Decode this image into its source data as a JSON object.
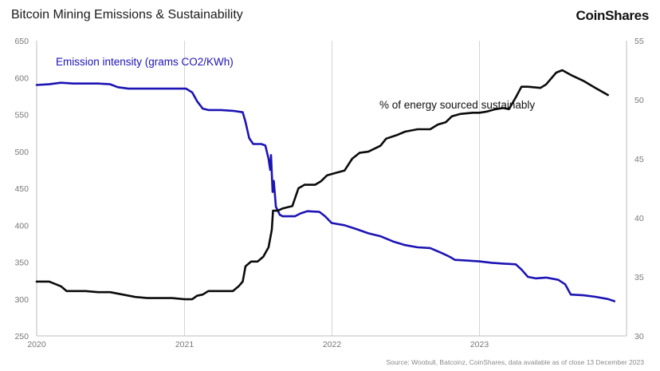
{
  "header": {
    "title": "Bitcoin Mining Emissions & Sustainability",
    "brand": "CoinShares"
  },
  "footer": {
    "source": "Source: Woobull, Batcoinz, CoinShares, data available as of close 13 December 2023"
  },
  "chart_data": {
    "type": "line",
    "x_type": "date",
    "xlim": [
      "2020-01-01",
      "2023-12-31"
    ],
    "x_ticks": [
      "2020",
      "2021",
      "2022",
      "2023"
    ],
    "y_left": {
      "lim": [
        250,
        650
      ],
      "ticks": [
        "250",
        "300",
        "350",
        "400",
        "450",
        "500",
        "550",
        "600",
        "650"
      ]
    },
    "y_right": {
      "lim": [
        30,
        55
      ],
      "ticks": [
        "30",
        "35",
        "40",
        "45",
        "50",
        "55"
      ]
    },
    "grid": {
      "vertical": true,
      "horizontal": false
    },
    "annotations": {
      "emission": "Emission intensity (grams CO2/KWh)",
      "sustainable": "% of energy sourced sustainably"
    },
    "series": [
      {
        "axis": "left",
        "color": "#1c14b4",
        "points": [
          [
            "2020-01-01",
            590
          ],
          [
            "2020-02-01",
            591
          ],
          [
            "2020-03-01",
            593
          ],
          [
            "2020-04-01",
            592
          ],
          [
            "2020-06-01",
            592
          ],
          [
            "2020-07-01",
            591
          ],
          [
            "2020-07-20",
            587
          ],
          [
            "2020-08-15",
            585
          ],
          [
            "2020-10-01",
            585
          ],
          [
            "2020-12-31",
            585
          ],
          [
            "2021-01-05",
            585
          ],
          [
            "2021-01-20",
            580
          ],
          [
            "2021-02-01",
            568
          ],
          [
            "2021-02-15",
            558
          ],
          [
            "2021-03-01",
            556
          ],
          [
            "2021-04-01",
            556
          ],
          [
            "2021-05-01",
            555
          ],
          [
            "2021-05-25",
            553
          ],
          [
            "2021-06-01",
            540
          ],
          [
            "2021-06-10",
            518
          ],
          [
            "2021-06-20",
            510
          ],
          [
            "2021-07-10",
            510
          ],
          [
            "2021-07-20",
            508
          ],
          [
            "2021-07-28",
            490
          ],
          [
            "2021-08-01",
            475
          ],
          [
            "2021-08-03",
            495
          ],
          [
            "2021-08-07",
            445
          ],
          [
            "2021-08-10",
            460
          ],
          [
            "2021-08-15",
            425
          ],
          [
            "2021-08-25",
            414
          ],
          [
            "2021-09-01",
            412
          ],
          [
            "2021-10-01",
            412
          ],
          [
            "2021-10-15",
            416
          ],
          [
            "2021-11-01",
            419
          ],
          [
            "2021-12-01",
            418
          ],
          [
            "2021-12-15",
            412
          ],
          [
            "2021-12-31",
            403
          ],
          [
            "2022-02-01",
            400
          ],
          [
            "2022-03-01",
            395
          ],
          [
            "2022-04-01",
            389
          ],
          [
            "2022-05-01",
            385
          ],
          [
            "2022-06-01",
            378
          ],
          [
            "2022-07-01",
            373
          ],
          [
            "2022-08-01",
            370
          ],
          [
            "2022-09-01",
            369
          ],
          [
            "2022-10-01",
            362
          ],
          [
            "2022-10-20",
            357
          ],
          [
            "2022-11-01",
            353
          ],
          [
            "2022-12-01",
            352
          ],
          [
            "2022-12-31",
            351
          ],
          [
            "2023-02-01",
            349
          ],
          [
            "2023-03-01",
            348
          ],
          [
            "2023-04-01",
            347
          ],
          [
            "2023-04-15",
            340
          ],
          [
            "2023-05-01",
            330
          ],
          [
            "2023-05-20",
            328
          ],
          [
            "2023-06-15",
            329
          ],
          [
            "2023-07-15",
            326
          ],
          [
            "2023-08-01",
            320
          ],
          [
            "2023-08-15",
            306
          ],
          [
            "2023-09-15",
            305
          ],
          [
            "2023-10-15",
            303
          ],
          [
            "2023-11-15",
            300
          ],
          [
            "2023-12-01",
            297
          ]
        ]
      },
      {
        "axis": "right",
        "color": "#0b0b0b",
        "points": [
          [
            "2020-01-01",
            34.6
          ],
          [
            "2020-02-01",
            34.6
          ],
          [
            "2020-03-01",
            34.2
          ],
          [
            "2020-03-15",
            33.8
          ],
          [
            "2020-05-01",
            33.8
          ],
          [
            "2020-06-01",
            33.7
          ],
          [
            "2020-07-01",
            33.7
          ],
          [
            "2020-08-01",
            33.5
          ],
          [
            "2020-09-01",
            33.3
          ],
          [
            "2020-10-01",
            33.2
          ],
          [
            "2020-12-01",
            33.2
          ],
          [
            "2021-01-01",
            33.1
          ],
          [
            "2021-01-20",
            33.1
          ],
          [
            "2021-02-01",
            33.4
          ],
          [
            "2021-02-15",
            33.5
          ],
          [
            "2021-03-01",
            33.8
          ],
          [
            "2021-05-01",
            33.8
          ],
          [
            "2021-05-15",
            34.2
          ],
          [
            "2021-05-25",
            34.6
          ],
          [
            "2021-06-01",
            35.9
          ],
          [
            "2021-06-15",
            36.3
          ],
          [
            "2021-07-01",
            36.3
          ],
          [
            "2021-07-15",
            36.7
          ],
          [
            "2021-07-28",
            37.5
          ],
          [
            "2021-08-05",
            39.0
          ],
          [
            "2021-08-08",
            40.6
          ],
          [
            "2021-08-20",
            40.6
          ],
          [
            "2021-09-01",
            40.8
          ],
          [
            "2021-09-25",
            41.0
          ],
          [
            "2021-10-10",
            42.5
          ],
          [
            "2021-10-25",
            42.8
          ],
          [
            "2021-11-20",
            42.8
          ],
          [
            "2021-12-05",
            43.1
          ],
          [
            "2021-12-20",
            43.6
          ],
          [
            "2022-01-10",
            43.8
          ],
          [
            "2022-02-01",
            44.0
          ],
          [
            "2022-02-20",
            45.0
          ],
          [
            "2022-03-10",
            45.5
          ],
          [
            "2022-04-01",
            45.6
          ],
          [
            "2022-05-01",
            46.1
          ],
          [
            "2022-05-15",
            46.7
          ],
          [
            "2022-06-10",
            47.0
          ],
          [
            "2022-07-01",
            47.3
          ],
          [
            "2022-08-01",
            47.5
          ],
          [
            "2022-09-01",
            47.5
          ],
          [
            "2022-09-20",
            47.9
          ],
          [
            "2022-10-10",
            48.1
          ],
          [
            "2022-10-25",
            48.6
          ],
          [
            "2022-11-15",
            48.8
          ],
          [
            "2022-12-15",
            48.9
          ],
          [
            "2023-01-01",
            48.9
          ],
          [
            "2023-01-20",
            49.0
          ],
          [
            "2023-02-10",
            49.2
          ],
          [
            "2023-03-01",
            49.3
          ],
          [
            "2023-03-15",
            49.2
          ],
          [
            "2023-04-01",
            50.2
          ],
          [
            "2023-04-15",
            51.1
          ],
          [
            "2023-05-01",
            51.1
          ],
          [
            "2023-06-01",
            51.0
          ],
          [
            "2023-06-15",
            51.3
          ],
          [
            "2023-07-10",
            52.3
          ],
          [
            "2023-07-25",
            52.5
          ],
          [
            "2023-08-15",
            52.1
          ],
          [
            "2023-09-15",
            51.6
          ],
          [
            "2023-10-15",
            51.0
          ],
          [
            "2023-11-15",
            50.4
          ]
        ]
      }
    ]
  }
}
